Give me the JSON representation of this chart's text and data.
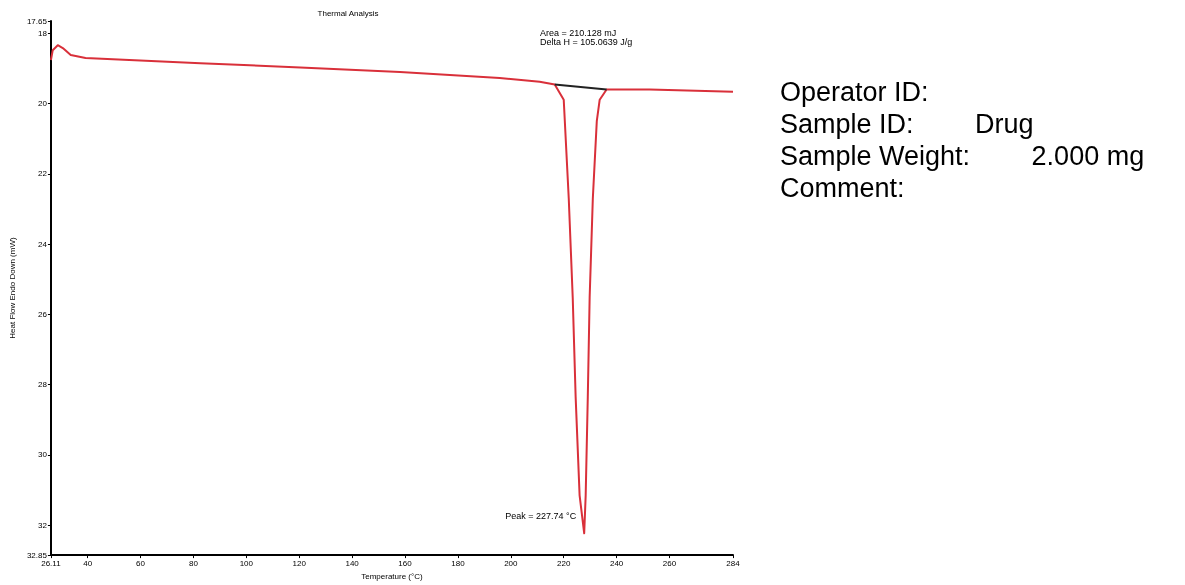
{
  "chart_data": {
    "type": "line",
    "title": "Thermal Analysis",
    "xlabel": "Temperature (°C)",
    "ylabel": "Heat Flow Endo Down (mW)",
    "xlim": [
      26.11,
      284
    ],
    "xticks": [
      26.11,
      40,
      60,
      80,
      100,
      120,
      140,
      160,
      180,
      200,
      220,
      240,
      260,
      284
    ],
    "ylim": [
      32.85,
      17.65
    ],
    "yticks": [
      17.65,
      18,
      20,
      22,
      24,
      26,
      28,
      30,
      32,
      32.85
    ],
    "grid": false,
    "marker": "none",
    "line_style": "solid",
    "series": [
      {
        "color": "#d9303a",
        "x": [
          26.11,
          26.8,
          28.7,
          30.6,
          33.6,
          39.2,
          82.6,
          120.4,
          158.1,
          195.8,
          210.9,
          216.6,
          220.0,
          221.9,
          223.4,
          224.5,
          226.0,
          227.74,
          228.3,
          229.1,
          229.8,
          231.0,
          232.5,
          233.6,
          236.2,
          252.5,
          284
        ],
        "values": [
          18.76,
          18.48,
          18.34,
          18.42,
          18.62,
          18.7,
          18.85,
          18.97,
          19.1,
          19.27,
          19.38,
          19.46,
          19.89,
          22.7,
          25.52,
          28.34,
          31.15,
          32.23,
          31.15,
          28.34,
          25.52,
          22.7,
          20.5,
          19.89,
          19.6,
          19.6,
          19.66
        ]
      },
      {
        "color": "#222222",
        "x": [
          216.6,
          236.2
        ],
        "values": [
          19.46,
          19.6
        ]
      }
    ],
    "annotations": [
      {
        "text": "Peak = 227.74 °C",
        "x": 227.74,
        "y": 32.23
      },
      "Area = 210.128 mJ",
      "Delta H = 105.0639 J/g",
      "Operator ID:",
      "Sample ID:      Drug",
      "Sample Weight:  2.000 mg",
      "Comment:"
    ]
  }
}
